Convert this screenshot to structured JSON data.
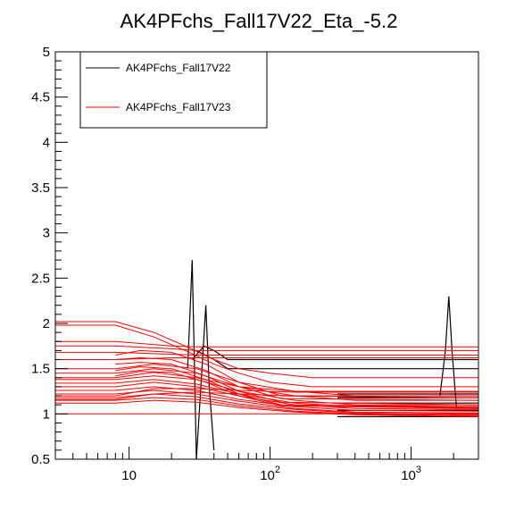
{
  "chart_data": {
    "type": "line",
    "title": "AK4PFchs_Fall17V22_Eta_-5.2",
    "xlabel": "",
    "ylabel": "",
    "x_scale": "log",
    "xlim": [
      3,
      3000
    ],
    "ylim": [
      0.5,
      5
    ],
    "y_ticks": [
      "0.5",
      "1",
      "1.5",
      "2",
      "2.5",
      "3",
      "3.5",
      "4",
      "4.5",
      "5"
    ],
    "x_ticks": [
      {
        "value": 10,
        "base": "10",
        "exp": ""
      },
      {
        "value": 100,
        "base": "10",
        "exp": "2"
      },
      {
        "value": 1000,
        "base": "10",
        "exp": "3"
      }
    ],
    "legend_position": "top-left",
    "colors": {
      "v22": "#000000",
      "v23": "#ff0000"
    },
    "series": [
      {
        "name": "AK4PFchs_Fall17V22",
        "color": "#000000",
        "curves": [
          {
            "x": [
              26,
              27,
              28,
              29,
              30
            ],
            "y": [
              1.5,
              2.1,
              2.7,
              1.6,
              0.5
            ]
          },
          {
            "x": [
              30,
              32,
              35,
              37,
              40
            ],
            "y": [
              0.5,
              1.2,
              2.2,
              1.3,
              0.6
            ]
          },
          {
            "x": [
              28,
              34,
              40,
              50,
              3000
            ],
            "y": [
              1.6,
              1.75,
              1.7,
              1.6,
              1.6
            ]
          },
          {
            "x": [
              30,
              40,
              50,
              3000
            ],
            "y": [
              1.7,
              1.6,
              1.5,
              1.5
            ]
          },
          {
            "x": [
              1600,
              1750,
              1850,
              1950,
              2100
            ],
            "y": [
              1.2,
              1.7,
              2.3,
              1.7,
              1.05
            ]
          },
          {
            "x": [
              300,
              3000
            ],
            "y": [
              1.22,
              1.22
            ]
          },
          {
            "x": [
              300,
              3000
            ],
            "y": [
              1.18,
              1.18
            ]
          },
          {
            "x": [
              300,
              3000
            ],
            "y": [
              1.12,
              1.12
            ]
          },
          {
            "x": [
              300,
              3000
            ],
            "y": [
              1.08,
              1.08
            ]
          },
          {
            "x": [
              300,
              3000
            ],
            "y": [
              1.04,
              1.04
            ]
          },
          {
            "x": [
              300,
              3000
            ],
            "y": [
              1.0,
              1.0
            ]
          },
          {
            "x": [
              300,
              3000
            ],
            "y": [
              0.97,
              0.97
            ]
          }
        ]
      },
      {
        "name": "AK4PFchs_Fall17V23",
        "color": "#ff0000",
        "curves": [
          {
            "x": [
              3,
              8,
              15,
              25,
              40,
              60,
              100,
              200,
              3000
            ],
            "y": [
              2.02,
              2.02,
              1.9,
              1.75,
              1.6,
              1.5,
              1.45,
              1.4,
              1.4
            ]
          },
          {
            "x": [
              3,
              8,
              15,
              25,
              40,
              60,
              100,
              200,
              3000
            ],
            "y": [
              1.98,
              1.98,
              1.85,
              1.7,
              1.55,
              1.45,
              1.35,
              1.3,
              1.3
            ]
          },
          {
            "x": [
              3,
              8,
              20,
              30,
              3000
            ],
            "y": [
              1.8,
              1.8,
              1.75,
              1.74,
              1.74
            ]
          },
          {
            "x": [
              3,
              8,
              20,
              30,
              3000
            ],
            "y": [
              1.75,
              1.75,
              1.72,
              1.7,
              1.7
            ]
          },
          {
            "x": [
              3,
              8,
              20,
              30,
              3000
            ],
            "y": [
              1.68,
              1.68,
              1.66,
              1.65,
              1.65
            ]
          },
          {
            "x": [
              3,
              8,
              20,
              30,
              3000
            ],
            "y": [
              1.6,
              1.6,
              1.62,
              1.62,
              1.62
            ]
          },
          {
            "x": [
              3,
              8,
              15,
              30,
              60,
              150,
              400,
              3000
            ],
            "y": [
              1.5,
              1.5,
              1.55,
              1.5,
              1.35,
              1.25,
              1.2,
              1.2
            ]
          },
          {
            "x": [
              3,
              8,
              15,
              30,
              60,
              150,
              400,
              3000
            ],
            "y": [
              1.45,
              1.45,
              1.5,
              1.45,
              1.3,
              1.2,
              1.15,
              1.15
            ]
          },
          {
            "x": [
              3,
              8,
              15,
              30,
              60,
              150,
              400,
              3000
            ],
            "y": [
              1.38,
              1.38,
              1.42,
              1.38,
              1.25,
              1.15,
              1.1,
              1.1
            ]
          },
          {
            "x": [
              3,
              8,
              15,
              30,
              60,
              150,
              400,
              3000
            ],
            "y": [
              1.34,
              1.34,
              1.38,
              1.33,
              1.22,
              1.12,
              1.08,
              1.07
            ]
          },
          {
            "x": [
              3,
              8,
              15,
              30,
              60,
              150,
              400,
              3000
            ],
            "y": [
              1.3,
              1.3,
              1.35,
              1.3,
              1.2,
              1.1,
              1.06,
              1.05
            ]
          },
          {
            "x": [
              3,
              8,
              15,
              30,
              60,
              150,
              400,
              3000
            ],
            "y": [
              1.26,
              1.26,
              1.3,
              1.26,
              1.16,
              1.08,
              1.04,
              1.03
            ]
          },
          {
            "x": [
              3,
              8,
              15,
              30,
              60,
              150,
              400,
              3000
            ],
            "y": [
              1.22,
              1.22,
              1.26,
              1.22,
              1.14,
              1.06,
              1.02,
              1.01
            ]
          },
          {
            "x": [
              3,
              8,
              15,
              30,
              60,
              150,
              400,
              3000
            ],
            "y": [
              1.18,
              1.18,
              1.22,
              1.19,
              1.11,
              1.05,
              1.01,
              0.99
            ]
          },
          {
            "x": [
              3,
              8,
              15,
              30,
              60,
              150,
              400,
              3000
            ],
            "y": [
              1.15,
              1.15,
              1.18,
              1.16,
              1.09,
              1.03,
              1.0,
              0.98
            ]
          },
          {
            "x": [
              3,
              8,
              15,
              30,
              60,
              150,
              400,
              3000
            ],
            "y": [
              1.12,
              1.12,
              1.15,
              1.13,
              1.07,
              1.02,
              0.99,
              0.97
            ]
          },
          {
            "x": [
              8,
              12,
              20,
              35,
              60,
              120,
              3000
            ],
            "y": [
              1.65,
              1.7,
              1.68,
              1.55,
              1.35,
              1.2,
              1.18
            ]
          },
          {
            "x": [
              8,
              12,
              20,
              35,
              60,
              120,
              3000
            ],
            "y": [
              1.6,
              1.62,
              1.6,
              1.48,
              1.3,
              1.17,
              1.15
            ]
          },
          {
            "x": [
              8,
              12,
              20,
              35,
              60,
              120,
              3000
            ],
            "y": [
              1.55,
              1.57,
              1.55,
              1.42,
              1.25,
              1.13,
              1.1
            ]
          },
          {
            "x": [
              8,
              12,
              20,
              35,
              60,
              120,
              3000
            ],
            "y": [
              1.48,
              1.52,
              1.5,
              1.38,
              1.22,
              1.1,
              1.08
            ]
          },
          {
            "x": [
              8,
              12,
              20,
              35,
              60,
              120,
              3000
            ],
            "y": [
              1.42,
              1.47,
              1.46,
              1.35,
              1.2,
              1.09,
              1.06
            ]
          },
          {
            "x": [
              3,
              8,
              15,
              30,
              60,
              150,
              3000
            ],
            "y": [
              1.4,
              1.4,
              1.46,
              1.4,
              1.3,
              1.25,
              1.25
            ]
          },
          {
            "x": [
              3,
              8,
              15,
              30,
              60,
              150,
              3000
            ],
            "y": [
              1.2,
              1.2,
              1.28,
              1.28,
              1.26,
              1.24,
              1.24
            ]
          },
          {
            "x": [
              3,
              8,
              15,
              30,
              60,
              150,
              3000
            ],
            "y": [
              1.16,
              1.16,
              1.22,
              1.24,
              1.22,
              1.2,
              1.2
            ]
          },
          {
            "x": [
              3,
              3000
            ],
            "y": [
              1.0,
              1.0
            ]
          }
        ]
      }
    ]
  }
}
